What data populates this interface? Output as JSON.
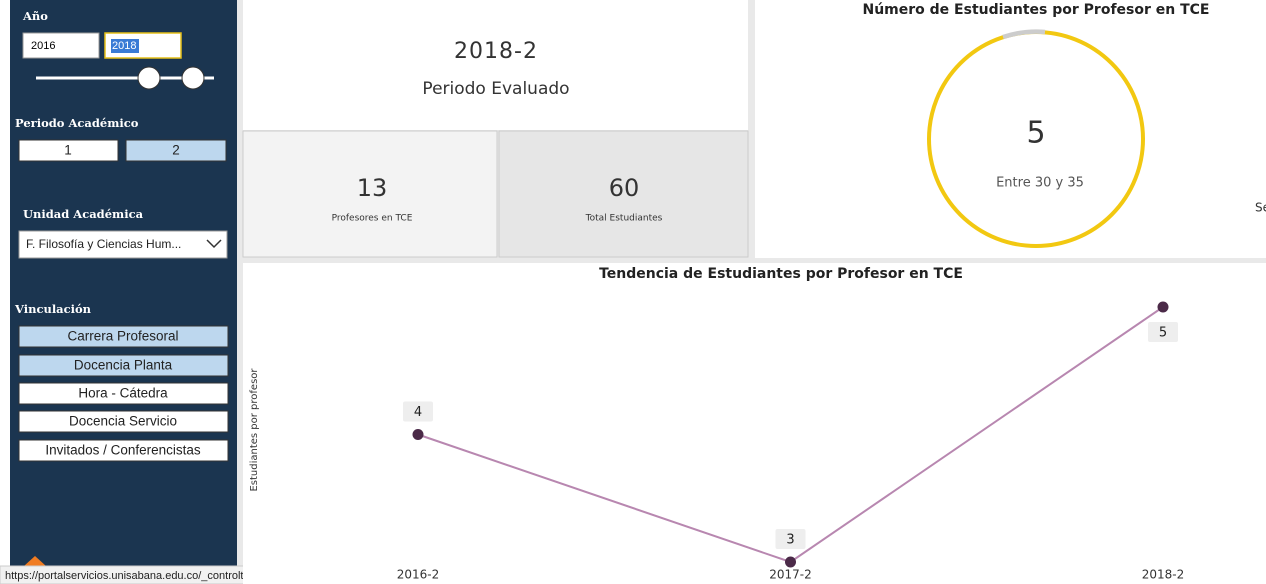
{
  "filters": {
    "year": {
      "label": "Año",
      "from": "2016",
      "to": "2018"
    },
    "period": {
      "label": "Periodo Académico",
      "options": [
        "1",
        "2"
      ]
    },
    "unit": {
      "label": "Unidad Académica",
      "selected": "F. Filosofía y Ciencias Hum..."
    },
    "link": {
      "label": "Vinculación",
      "options": [
        "Carrera Profesoral",
        "Docencia Planta",
        "Hora - Cátedra",
        "Docencia Servicio",
        "Invitados / Conferencistas"
      ]
    }
  },
  "period_card": {
    "value": "2018-2",
    "label": "Periodo Evaluado"
  },
  "cards": [
    {
      "value": "13",
      "label": "Profesores en TCE"
    },
    {
      "value": "60",
      "label": "Total Estudiantes"
    }
  ],
  "gauge": {
    "title": "Número de Estudiantes por Profesor en TCE",
    "value": "5",
    "label": "Entre 30 y 35",
    "cut_text": "Se"
  },
  "trend_chart": {
    "type": "line",
    "title": "Tendencia de Estudiantes por Profesor en TCE",
    "y_label": "Estudiantes por profesor",
    "categories": [
      "2016-2",
      "2017-2",
      "2018-2"
    ],
    "values": [
      4,
      3,
      5
    ],
    "color": "#b887b0",
    "marker_color": "#4b2a48"
  },
  "status_url": "https://portalservicios.unisabana.edu.co/_controltemplates/15/#"
}
